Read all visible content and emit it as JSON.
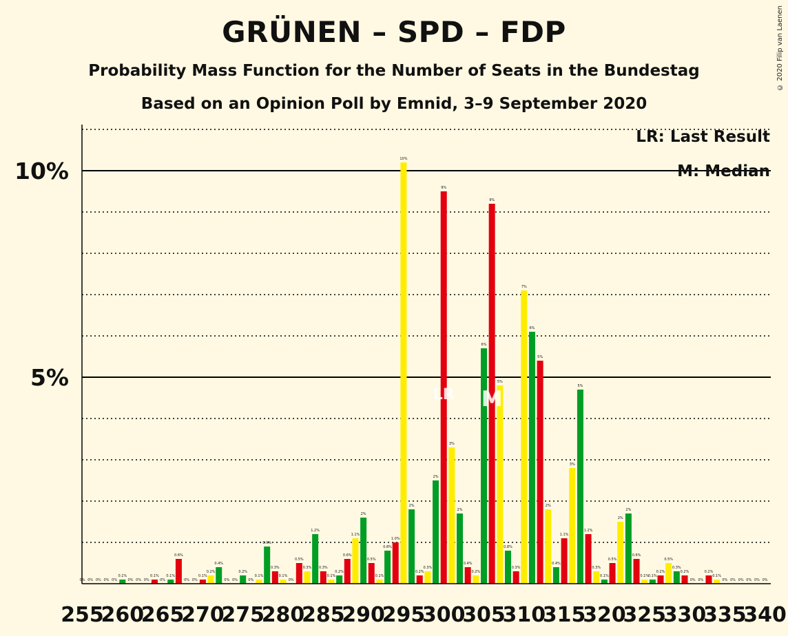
{
  "title": "GRÜNEN – SPD – FDP",
  "subtitle": "Probability Mass Function for the Number of Seats in the Bundestag",
  "source": "Based on an Opinion Poll by Emnid, 3–9 September 2020",
  "copyright": "© 2020 Filip van Laenen",
  "legend": {
    "last_result": "LR: Last Result",
    "median": "M: Median"
  },
  "colors": {
    "background": "#FFF9E3",
    "cycle": [
      "#E3000F",
      "#FFED00",
      "#009E24"
    ]
  },
  "chart_data": {
    "type": "bar",
    "xlabel": "",
    "ylabel": "",
    "xlim": [
      255,
      340
    ],
    "ylim": [
      0,
      11
    ],
    "y_ticks": [
      {
        "value": 5,
        "label": "5%"
      },
      {
        "value": 10,
        "label": "10%"
      }
    ],
    "x_ticks": [
      255,
      260,
      265,
      270,
      275,
      280,
      285,
      290,
      295,
      300,
      305,
      310,
      315,
      320,
      325,
      330,
      335,
      340
    ],
    "grid": "dotted at every 1%",
    "median_seat": 306,
    "last_result_seat": 300,
    "markers": {
      "median": "M",
      "last_result": "LR"
    },
    "series": [
      {
        "seats": [
          255,
          256,
          257,
          258,
          259,
          260,
          261,
          262,
          263,
          264,
          265,
          266,
          267,
          268,
          269,
          270,
          271,
          272,
          273,
          274,
          275,
          276,
          277,
          278,
          279,
          280,
          281,
          282,
          283,
          284,
          285,
          286,
          287,
          288,
          289,
          290,
          291,
          292,
          293,
          294,
          295,
          296,
          297,
          298,
          299,
          300,
          301,
          302,
          303,
          304,
          305,
          306,
          307,
          308,
          309,
          310,
          311,
          312,
          313,
          314,
          315,
          316,
          317,
          318,
          319,
          320,
          321,
          322,
          323,
          324,
          325,
          326,
          327,
          328,
          329,
          330,
          331,
          332,
          333,
          334,
          335,
          336,
          337,
          338,
          339,
          340
        ],
        "values": [
          0,
          0,
          0,
          0,
          0,
          0.1,
          0,
          0,
          0,
          0.1,
          0,
          0.1,
          0.6,
          0,
          0,
          0.1,
          0.2,
          0.4,
          0,
          0,
          0.2,
          0,
          0.1,
          0.9,
          0.3,
          0.1,
          0,
          0.5,
          0.3,
          1.2,
          0.3,
          0.1,
          0.2,
          0.6,
          1.1,
          1.6,
          0.5,
          0.1,
          0.8,
          1.0,
          10.2,
          1.8,
          0.2,
          0.3,
          2.5,
          9.5,
          3.3,
          1.7,
          0.4,
          0.2,
          5.7,
          9.2,
          4.8,
          0.8,
          0.3,
          7.1,
          6.1,
          5.4,
          1.8,
          0.4,
          1.1,
          2.8,
          4.7,
          1.2,
          0.3,
          0.1,
          0.5,
          1.5,
          1.7,
          0.6,
          0.1,
          0.1,
          0.2,
          0.5,
          0.3,
          0.2,
          0,
          0,
          0.2,
          0.1,
          0,
          0,
          0,
          0,
          0,
          0
        ],
        "data_labels": [
          "0%",
          "0%",
          "0%",
          "0%",
          "0%",
          "0.1%",
          "0%",
          "0%",
          "0%",
          "0.1%",
          "0%",
          "0.1%",
          "0.6%",
          "0%",
          "0%",
          "0.1%",
          "0.2%",
          "0.4%",
          "0%",
          "0%",
          "0.2%",
          "0%",
          "0.1%",
          "0.9%",
          "0.3%",
          "0.1%",
          "0%",
          "0.5%",
          "0.3%",
          "1.2%",
          "0.3%",
          "0.1%",
          "0.2%",
          "0.6%",
          "1.1%",
          "2%",
          "0.5%",
          "0.1%",
          "0.8%",
          "1.0%",
          "10%",
          "2%",
          "0.2%",
          "0.3%",
          "2%",
          "9%",
          "3%",
          "2%",
          "0.4%",
          "0.2%",
          "6%",
          "9%",
          "5%",
          "0.8%",
          "0.3%",
          "7%",
          "6%",
          "5%",
          "2%",
          "0.4%",
          "1.1%",
          "3%",
          "5%",
          "1.2%",
          "0.3%",
          "0.1%",
          "0.5%",
          "2%",
          "2%",
          "0.6%",
          "0.1%",
          "0.1%",
          "0.2%",
          "0.5%",
          "0.3%",
          "0.2%",
          "0%",
          "0%",
          "0.2%",
          "0.1%",
          "0%",
          "0%",
          "0%",
          "0%",
          "0%",
          "0%"
        ]
      }
    ]
  }
}
